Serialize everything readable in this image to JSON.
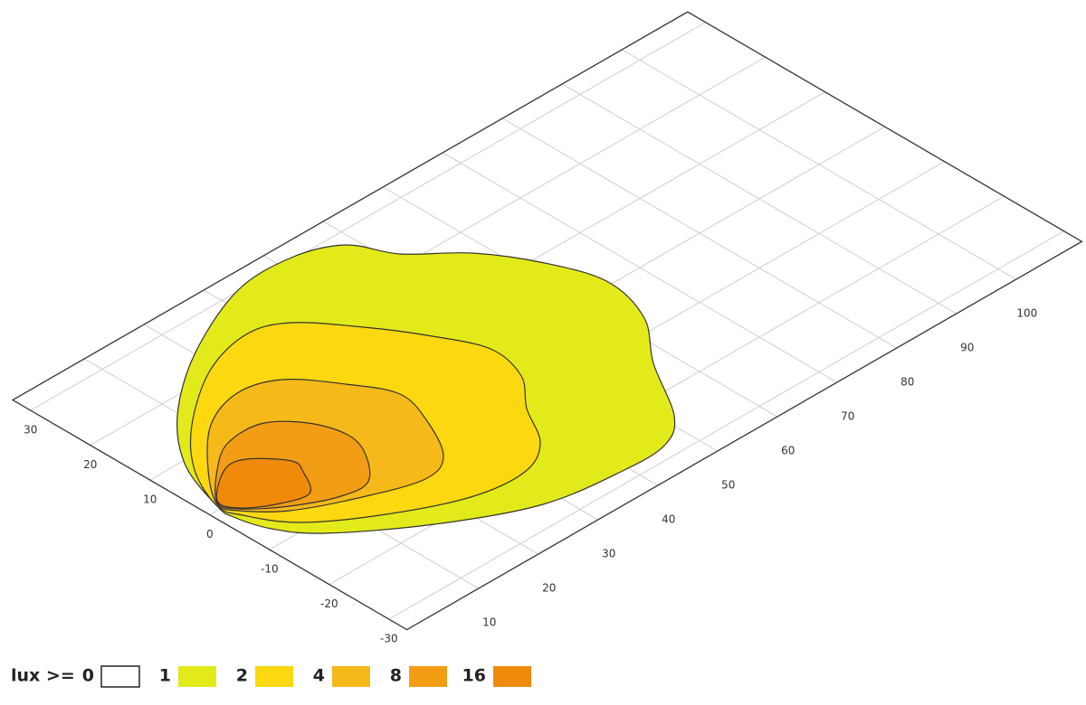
{
  "chart_data": {
    "type": "contour",
    "legend_title": "lux >=",
    "levels": [
      0,
      1,
      2,
      4,
      8,
      16
    ],
    "colors": [
      "#ffffff",
      "#e3ea1a",
      "#fbd80f",
      "#f6b91a",
      "#f39d14",
      "#ef8a0a"
    ],
    "xlim": [
      -33,
      33
    ],
    "ylim": [
      -2,
      111
    ],
    "xticks": [
      -30,
      -20,
      -10,
      0,
      10,
      20,
      30
    ],
    "yticks": [
      10,
      20,
      30,
      40,
      50,
      60,
      70,
      80,
      90,
      100
    ],
    "grid": true
  }
}
